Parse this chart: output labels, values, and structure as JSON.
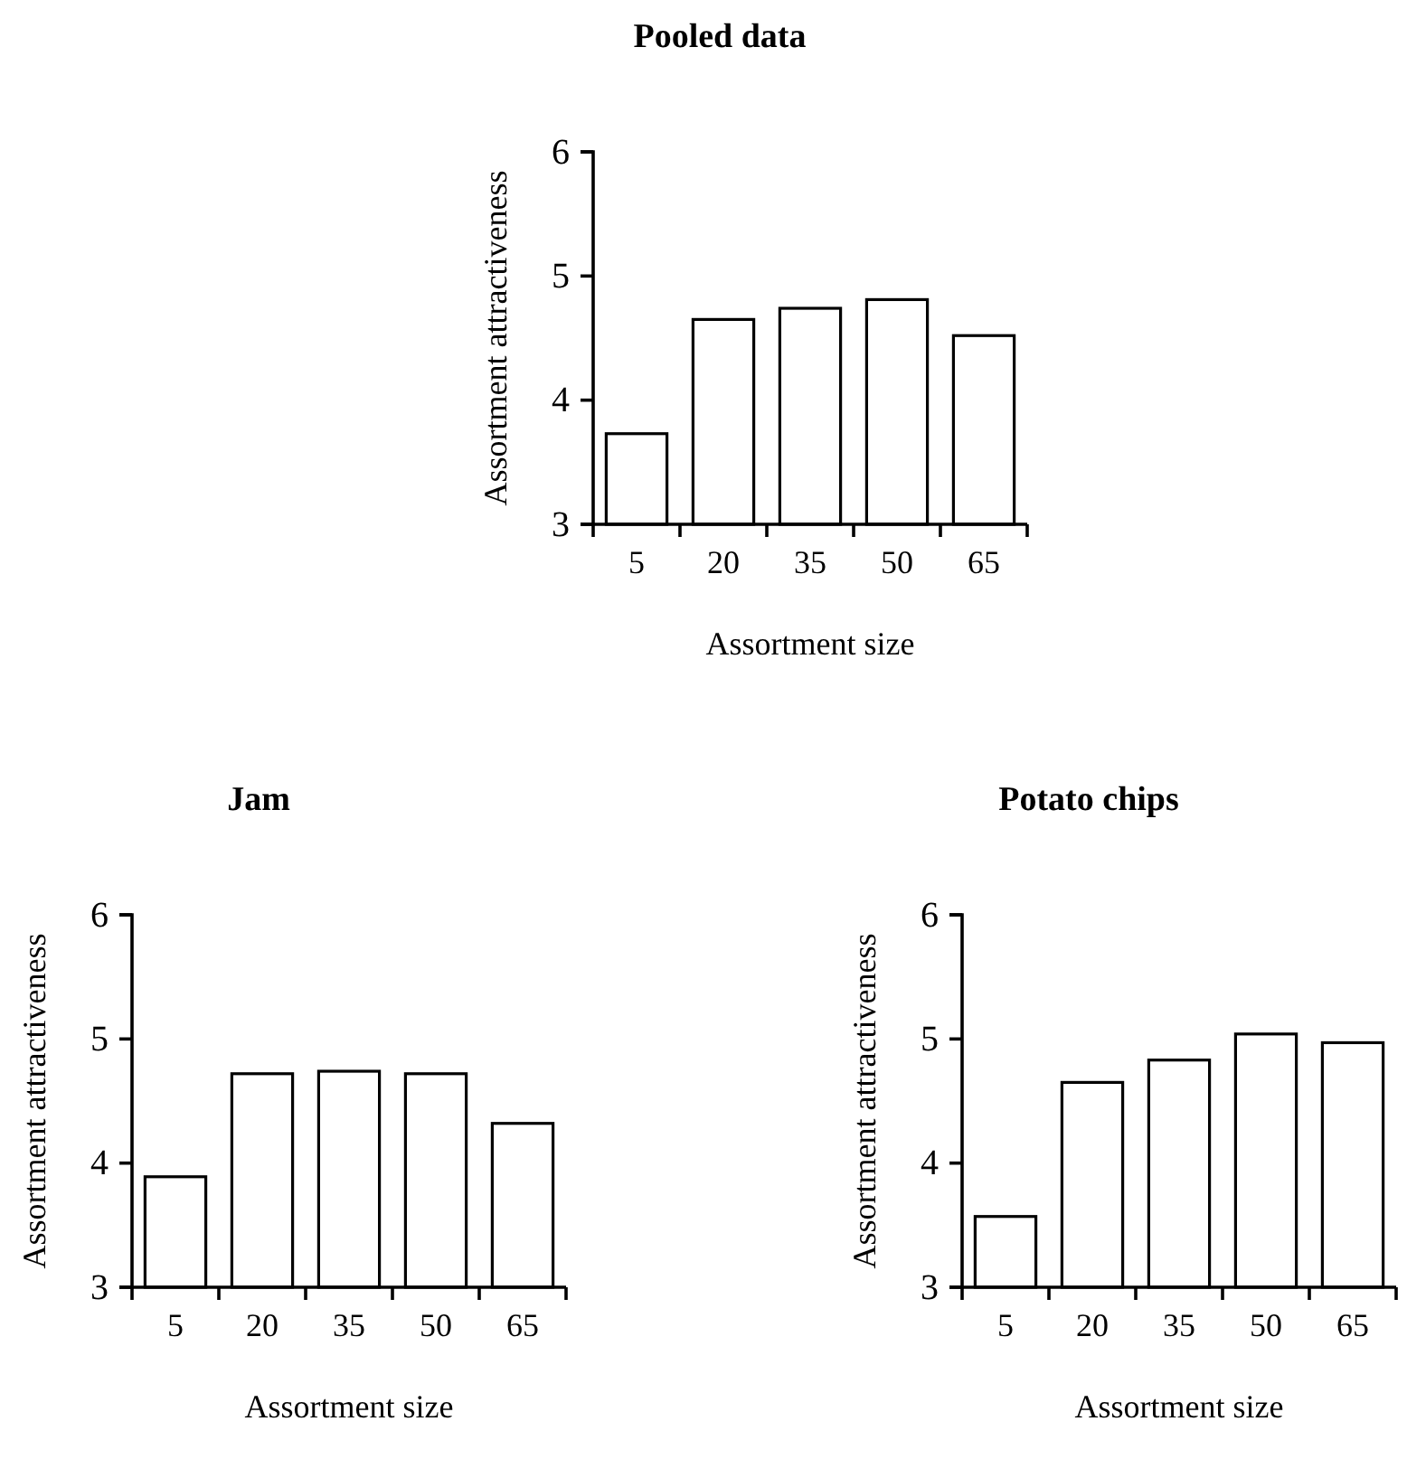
{
  "chart_data": [
    {
      "type": "bar",
      "title": "Pooled data",
      "xlabel": "Assortment size",
      "ylabel": "Assortment attractiveness",
      "categories": [
        "5",
        "20",
        "35",
        "50",
        "65"
      ],
      "series": [
        {
          "color": "#ffffff",
          "values": [
            3.73,
            4.65,
            4.74,
            4.81,
            4.52
          ]
        }
      ],
      "ylim": [
        3,
        6
      ],
      "yticks": [
        3,
        4,
        5,
        6
      ],
      "grid": false
    },
    {
      "type": "bar",
      "title": "Jam",
      "xlabel": "Assortment size",
      "ylabel": "Assortment attractiveness",
      "categories": [
        "5",
        "20",
        "35",
        "50",
        "65"
      ],
      "series": [
        {
          "color": "#ffffff",
          "values": [
            3.89,
            4.72,
            4.74,
            4.72,
            4.32
          ]
        }
      ],
      "ylim": [
        3,
        6
      ],
      "yticks": [
        3,
        4,
        5,
        6
      ],
      "grid": false
    },
    {
      "type": "bar",
      "title": "Potato chips",
      "xlabel": "Assortment size",
      "ylabel": "Assortment attractiveness",
      "categories": [
        "5",
        "20",
        "35",
        "50",
        "65"
      ],
      "series": [
        {
          "color": "#ffffff",
          "values": [
            3.57,
            4.65,
            4.83,
            5.04,
            4.97
          ]
        }
      ],
      "ylim": [
        3,
        6
      ],
      "yticks": [
        3,
        4,
        5,
        6
      ],
      "grid": false
    }
  ]
}
